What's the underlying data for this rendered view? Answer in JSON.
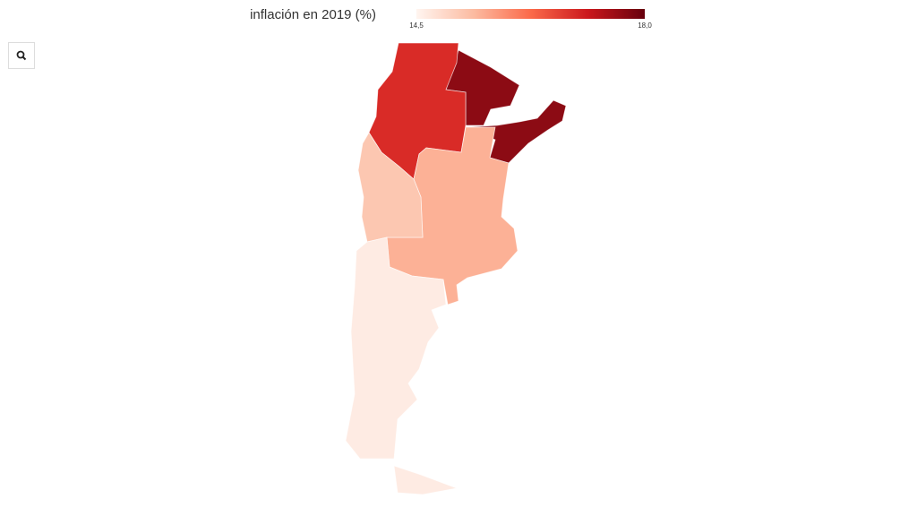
{
  "map": {
    "title": "inflación en 2019 (%)",
    "colorbar": {
      "ticks": [
        {
          "value": 14.5,
          "label": "14,5"
        },
        {
          "value": 18.0,
          "label": "18,0"
        }
      ],
      "colors": [
        "#fff5f0",
        "#fcbba1",
        "#fb6a4a",
        "#cb181d",
        "#67000d"
      ]
    },
    "regions": [
      {
        "value": 18.0,
        "color": "#8c0b14"
      },
      {
        "value": 16.8,
        "color": "#d92b27"
      },
      {
        "value": 15.5,
        "color": "#fcb196"
      },
      {
        "value": 15.2,
        "color": "#fcc7b1"
      },
      {
        "value": 14.6,
        "color": "#feebe3"
      }
    ]
  }
}
